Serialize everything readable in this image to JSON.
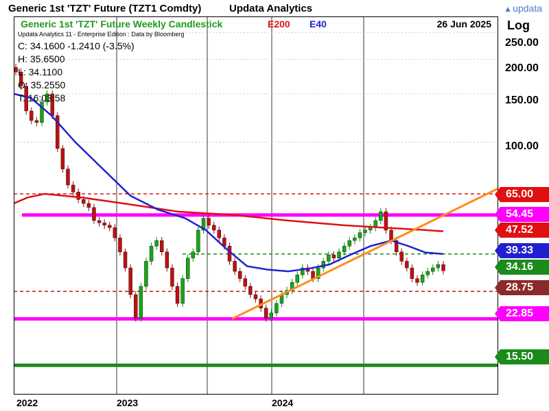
{
  "header": {
    "title": "Generic 1st 'TZT' Future (TZT1 Comdty)",
    "brand": "Updata Analytics",
    "logo_text": "updata"
  },
  "legend": {
    "series_label": "Generic 1st 'TZT' Future Weekly Candlestick",
    "series_color": "#1a9a1a",
    "e200": "E200",
    "e200_color": "#e01010",
    "e40": "E40",
    "e40_color": "#2020d0",
    "date": "26 Jun 2025",
    "subtitle": "Updata Analytics 11 - Enterprise Edition : Data by Bloomberg"
  },
  "readout": {
    "close": "C: 34.1600   -1.2410 (-3.5%)",
    "high": "H: 35.6500",
    "low": "L: 34.1100",
    "open": "O: 35.2550",
    "time": "T: 16:03:58"
  },
  "axis": {
    "scale_label": "Log",
    "ticks": [
      "250.00",
      "200.00",
      "150.00",
      "100.00"
    ],
    "tick_values": [
      250,
      200,
      150,
      100
    ],
    "x_labels": [
      "2022",
      "2023",
      "2024"
    ]
  },
  "chart_data": {
    "type": "candlestick",
    "yscale": "log",
    "ylim": [
      13,
      280
    ],
    "title": "Generic 1st 'TZT' Future Weekly Candlestick",
    "x_start": "2022-12",
    "x_end": "2025-06",
    "weekly_close_approx": [
      180,
      160,
      130,
      120,
      118,
      140,
      150,
      125,
      95,
      80,
      70,
      66,
      62,
      60,
      58,
      52,
      51,
      50,
      49,
      45,
      40,
      35,
      28,
      23,
      30,
      37,
      42,
      44,
      40,
      35,
      30,
      26,
      32,
      38,
      40,
      48,
      53,
      50,
      48,
      45,
      42,
      37,
      34,
      32,
      30,
      28,
      27,
      25,
      23,
      24,
      26,
      28,
      29,
      31,
      33,
      35,
      34,
      32,
      35,
      37,
      39,
      38,
      40,
      42,
      44,
      45,
      47,
      48,
      49,
      52,
      56,
      48,
      44,
      40,
      37,
      35,
      32,
      31,
      33,
      34,
      35,
      36,
      34.16
    ],
    "series": [
      {
        "name": "E200",
        "color": "#e01010"
      },
      {
        "name": "E40",
        "color": "#2020d0"
      }
    ],
    "horizontal_levels": [
      {
        "value": 65.0,
        "style": "dashed",
        "color": "#e01010",
        "label": "65.00"
      },
      {
        "value": 54.45,
        "style": "solid",
        "color": "#ff00ff",
        "label": "54.45"
      },
      {
        "value": 47.52,
        "style": "none",
        "color": "#e01010",
        "label": "47.52"
      },
      {
        "value": 39.33,
        "style": "dashed",
        "color": "#1a8a1a",
        "label": "39.33"
      },
      {
        "value": 34.16,
        "style": "none",
        "color": "#1a8a1a",
        "label": "34.16"
      },
      {
        "value": 28.75,
        "style": "dashed",
        "color": "#c01010",
        "label": "28.75"
      },
      {
        "value": 22.85,
        "style": "solid",
        "color": "#ff00ff",
        "label": "22.85"
      },
      {
        "value": 15.5,
        "style": "solid",
        "color": "#1a8a1a",
        "label": "15.50"
      }
    ],
    "value_tags": [
      {
        "label": "65.00",
        "color": "#e01010"
      },
      {
        "label": "54.45",
        "color": "#ff00ff"
      },
      {
        "label": "47.52",
        "color": "#e01010"
      },
      {
        "label": "39.33",
        "color": "#2020d0"
      },
      {
        "label": "34.16",
        "color": "#1a8a1a"
      },
      {
        "label": "28.75",
        "color": "#8b2a2a"
      },
      {
        "label": "22.85",
        "color": "#ff00ff"
      },
      {
        "label": "15.50",
        "color": "#1a8a1a"
      }
    ],
    "trendline_color": "#ff8c1a"
  }
}
